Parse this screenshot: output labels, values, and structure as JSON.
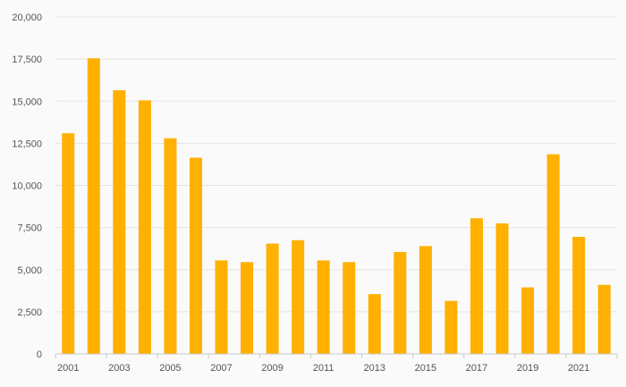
{
  "chart_data": {
    "type": "bar",
    "title": "",
    "xlabel": "",
    "ylabel": "",
    "categories": [
      "2001",
      "2002",
      "2003",
      "2004",
      "2005",
      "2006",
      "2007",
      "2008",
      "2009",
      "2010",
      "2011",
      "2012",
      "2013",
      "2014",
      "2015",
      "2016",
      "2017",
      "2018",
      "2019",
      "2020",
      "2021",
      "2022"
    ],
    "x_tick_labels": [
      "2001",
      "2003",
      "2005",
      "2007",
      "2009",
      "2011",
      "2013",
      "2015",
      "2017",
      "2019",
      "2021"
    ],
    "y_tick_labels": [
      "0",
      "2,500",
      "5,000",
      "7,500",
      "10,000",
      "12,500",
      "15,000",
      "17,500",
      "20,000"
    ],
    "y_ticks": [
      0,
      2500,
      5000,
      7500,
      10000,
      12500,
      15000,
      17500,
      20000
    ],
    "ylim": [
      0,
      20000
    ],
    "values": [
      13100,
      17550,
      15650,
      15050,
      12800,
      11650,
      5550,
      5450,
      6550,
      6750,
      5550,
      5450,
      3550,
      6050,
      6400,
      3150,
      8050,
      7750,
      3950,
      11850,
      6950,
      4100
    ],
    "bar_color": "#FFB000",
    "grid": true,
    "legend": "none"
  }
}
